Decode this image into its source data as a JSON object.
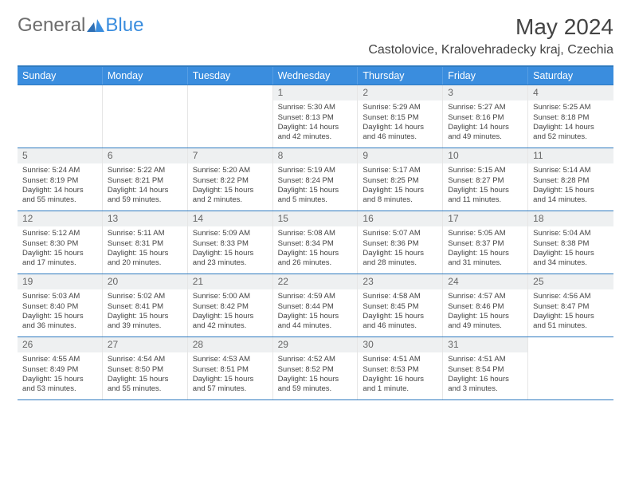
{
  "brand": {
    "part1": "General",
    "part2": "Blue"
  },
  "title": {
    "monthyear": "May 2024",
    "location": "Castolovice, Kralovehradecky kraj, Czechia"
  },
  "colors": {
    "header_bg": "#3a8dde",
    "header_border": "#2e7abf",
    "daynum_bg": "#eef0f1",
    "text": "#444444"
  },
  "dayLabels": [
    "Sunday",
    "Monday",
    "Tuesday",
    "Wednesday",
    "Thursday",
    "Friday",
    "Saturday"
  ],
  "labels": {
    "sunrise": "Sunrise: ",
    "sunset": "Sunset: ",
    "daylight": "Daylight: "
  },
  "weeks": [
    [
      {
        "empty": true
      },
      {
        "empty": true
      },
      {
        "empty": true
      },
      {
        "day": "1",
        "sunrise": "5:30 AM",
        "sunset": "8:13 PM",
        "daylight": "14 hours and 42 minutes."
      },
      {
        "day": "2",
        "sunrise": "5:29 AM",
        "sunset": "8:15 PM",
        "daylight": "14 hours and 46 minutes."
      },
      {
        "day": "3",
        "sunrise": "5:27 AM",
        "sunset": "8:16 PM",
        "daylight": "14 hours and 49 minutes."
      },
      {
        "day": "4",
        "sunrise": "5:25 AM",
        "sunset": "8:18 PM",
        "daylight": "14 hours and 52 minutes."
      }
    ],
    [
      {
        "day": "5",
        "sunrise": "5:24 AM",
        "sunset": "8:19 PM",
        "daylight": "14 hours and 55 minutes."
      },
      {
        "day": "6",
        "sunrise": "5:22 AM",
        "sunset": "8:21 PM",
        "daylight": "14 hours and 59 minutes."
      },
      {
        "day": "7",
        "sunrise": "5:20 AM",
        "sunset": "8:22 PM",
        "daylight": "15 hours and 2 minutes."
      },
      {
        "day": "8",
        "sunrise": "5:19 AM",
        "sunset": "8:24 PM",
        "daylight": "15 hours and 5 minutes."
      },
      {
        "day": "9",
        "sunrise": "5:17 AM",
        "sunset": "8:25 PM",
        "daylight": "15 hours and 8 minutes."
      },
      {
        "day": "10",
        "sunrise": "5:15 AM",
        "sunset": "8:27 PM",
        "daylight": "15 hours and 11 minutes."
      },
      {
        "day": "11",
        "sunrise": "5:14 AM",
        "sunset": "8:28 PM",
        "daylight": "15 hours and 14 minutes."
      }
    ],
    [
      {
        "day": "12",
        "sunrise": "5:12 AM",
        "sunset": "8:30 PM",
        "daylight": "15 hours and 17 minutes."
      },
      {
        "day": "13",
        "sunrise": "5:11 AM",
        "sunset": "8:31 PM",
        "daylight": "15 hours and 20 minutes."
      },
      {
        "day": "14",
        "sunrise": "5:09 AM",
        "sunset": "8:33 PM",
        "daylight": "15 hours and 23 minutes."
      },
      {
        "day": "15",
        "sunrise": "5:08 AM",
        "sunset": "8:34 PM",
        "daylight": "15 hours and 26 minutes."
      },
      {
        "day": "16",
        "sunrise": "5:07 AM",
        "sunset": "8:36 PM",
        "daylight": "15 hours and 28 minutes."
      },
      {
        "day": "17",
        "sunrise": "5:05 AM",
        "sunset": "8:37 PM",
        "daylight": "15 hours and 31 minutes."
      },
      {
        "day": "18",
        "sunrise": "5:04 AM",
        "sunset": "8:38 PM",
        "daylight": "15 hours and 34 minutes."
      }
    ],
    [
      {
        "day": "19",
        "sunrise": "5:03 AM",
        "sunset": "8:40 PM",
        "daylight": "15 hours and 36 minutes."
      },
      {
        "day": "20",
        "sunrise": "5:02 AM",
        "sunset": "8:41 PM",
        "daylight": "15 hours and 39 minutes."
      },
      {
        "day": "21",
        "sunrise": "5:00 AM",
        "sunset": "8:42 PM",
        "daylight": "15 hours and 42 minutes."
      },
      {
        "day": "22",
        "sunrise": "4:59 AM",
        "sunset": "8:44 PM",
        "daylight": "15 hours and 44 minutes."
      },
      {
        "day": "23",
        "sunrise": "4:58 AM",
        "sunset": "8:45 PM",
        "daylight": "15 hours and 46 minutes."
      },
      {
        "day": "24",
        "sunrise": "4:57 AM",
        "sunset": "8:46 PM",
        "daylight": "15 hours and 49 minutes."
      },
      {
        "day": "25",
        "sunrise": "4:56 AM",
        "sunset": "8:47 PM",
        "daylight": "15 hours and 51 minutes."
      }
    ],
    [
      {
        "day": "26",
        "sunrise": "4:55 AM",
        "sunset": "8:49 PM",
        "daylight": "15 hours and 53 minutes."
      },
      {
        "day": "27",
        "sunrise": "4:54 AM",
        "sunset": "8:50 PM",
        "daylight": "15 hours and 55 minutes."
      },
      {
        "day": "28",
        "sunrise": "4:53 AM",
        "sunset": "8:51 PM",
        "daylight": "15 hours and 57 minutes."
      },
      {
        "day": "29",
        "sunrise": "4:52 AM",
        "sunset": "8:52 PM",
        "daylight": "15 hours and 59 minutes."
      },
      {
        "day": "30",
        "sunrise": "4:51 AM",
        "sunset": "8:53 PM",
        "daylight": "16 hours and 1 minute."
      },
      {
        "day": "31",
        "sunrise": "4:51 AM",
        "sunset": "8:54 PM",
        "daylight": "16 hours and 3 minutes."
      },
      {
        "empty": true
      }
    ]
  ]
}
